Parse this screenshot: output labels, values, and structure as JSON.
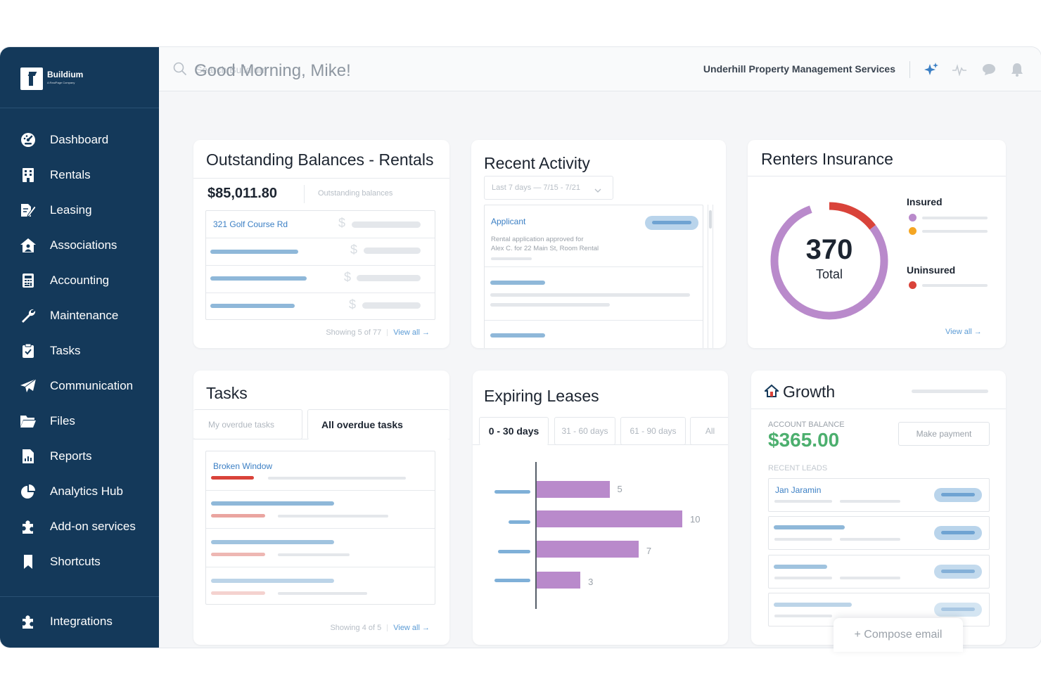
{
  "sidebar": {
    "brand": {
      "name": "Buildium",
      "tagline": "A RealPage Company"
    },
    "items": [
      {
        "label": "Dashboard",
        "icon": "dashboard-icon"
      },
      {
        "label": "Rentals",
        "icon": "building-icon"
      },
      {
        "label": "Leasing",
        "icon": "lease-pen-icon"
      },
      {
        "label": "Associations",
        "icon": "home-people-icon"
      },
      {
        "label": "Accounting",
        "icon": "calculator-icon"
      },
      {
        "label": "Maintenance",
        "icon": "wrench-icon"
      },
      {
        "label": "Tasks",
        "icon": "clipboard-check-icon"
      },
      {
        "label": "Communication",
        "icon": "paper-plane-icon"
      },
      {
        "label": "Files",
        "icon": "folder-icon"
      },
      {
        "label": "Reports",
        "icon": "report-icon"
      },
      {
        "label": "Analytics Hub",
        "icon": "pie-chart-icon"
      },
      {
        "label": "Add-on services",
        "icon": "puzzle-icon"
      },
      {
        "label": "Shortcuts",
        "icon": "bookmark-icon"
      }
    ],
    "bottom": {
      "label": "Integrations",
      "icon": "puzzle-icon"
    }
  },
  "topbar": {
    "search_placeholder": "Search Buildium",
    "company": "Underhill Property Management Services",
    "icons": [
      "sparkle-icon",
      "pulse-icon",
      "chat-icon",
      "bell-icon"
    ]
  },
  "greeting": "Good Morning, Mike!",
  "outstanding": {
    "title": "Outstanding Balances - Rentals",
    "amount": "$85,011.80",
    "amount_label": "Outstanding balances",
    "first_row": "321 Golf Course Rd",
    "currency_symbol": "$",
    "footer_count": "Showing 5 of 77",
    "footer_link": "View all →"
  },
  "activity": {
    "title": "Recent Activity",
    "filter": "Last 7 days — 7/15 - 7/21",
    "item_type": "Applicant",
    "item_text_1": "Rental application approved for",
    "item_text_2": "Alex C. for 22 Main St, Room Rental"
  },
  "insurance": {
    "title": "Renters Insurance",
    "total": "370",
    "total_label": "Total",
    "insured_label": "Insured",
    "uninsured_label": "Uninsured",
    "footer_link": "View all →",
    "colors": {
      "insured_primary": "#b98acb",
      "insured_secondary": "#f5a623",
      "uninsured": "#d9433a"
    }
  },
  "tasks": {
    "title": "Tasks",
    "tab_mine": "My overdue tasks",
    "tab_all": "All overdue tasks",
    "first_task": "Broken Window",
    "footer_count": "Showing 4 of 5",
    "footer_link": "View all →"
  },
  "leases": {
    "title": "Expiring Leases",
    "tabs": [
      "0 - 30 days",
      "31 - 60 days",
      "61 - 90 days",
      "All"
    ],
    "bar_values": [
      5,
      10,
      7,
      3
    ]
  },
  "growth": {
    "title": "Growth",
    "balance_label": "ACCOUNT BALANCE",
    "balance": "$365.00",
    "pay_button": "Make payment",
    "leads_label": "RECENT LEADS",
    "first_lead": "Jan Jaramin",
    "compose": "+ Compose email"
  }
}
